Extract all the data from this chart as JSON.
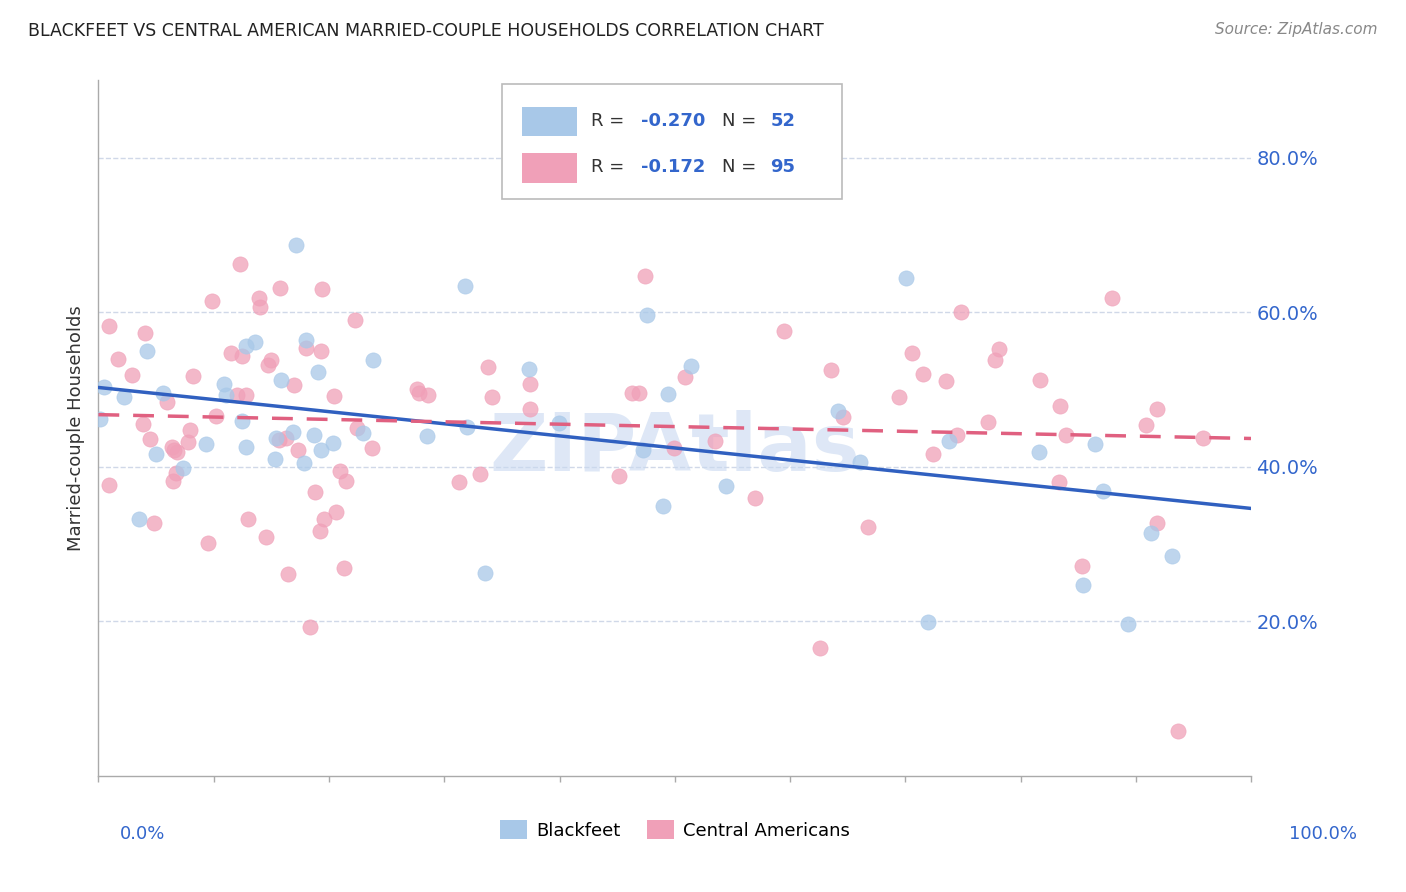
{
  "title": "BLACKFEET VS CENTRAL AMERICAN MARRIED-COUPLE HOUSEHOLDS CORRELATION CHART",
  "source": "Source: ZipAtlas.com",
  "ylabel": "Married-couple Households",
  "blackfeet_R": -0.27,
  "blackfeet_N": 52,
  "central_R": -0.172,
  "central_N": 95,
  "blackfeet_color": "#a8c8e8",
  "central_color": "#f0a0b8",
  "blackfeet_line_color": "#3060c0",
  "central_line_color": "#e06080",
  "watermark_color": "#c8d8f0",
  "background_color": "#ffffff",
  "xlim": [
    0.0,
    1.0
  ],
  "ylim": [
    0.0,
    0.9
  ],
  "yticks": [
    0.2,
    0.4,
    0.6,
    0.8
  ],
  "ytick_labels": [
    "20.0%",
    "40.0%",
    "60.0%",
    "80.0%"
  ],
  "grid_color": "#d0d8e8",
  "legend_R_color": "#3366cc",
  "legend_N_color": "#3366cc",
  "blackfeet_line_y0": 0.475,
  "blackfeet_line_y1": 0.325,
  "central_line_y0": 0.468,
  "central_line_y1": 0.405
}
